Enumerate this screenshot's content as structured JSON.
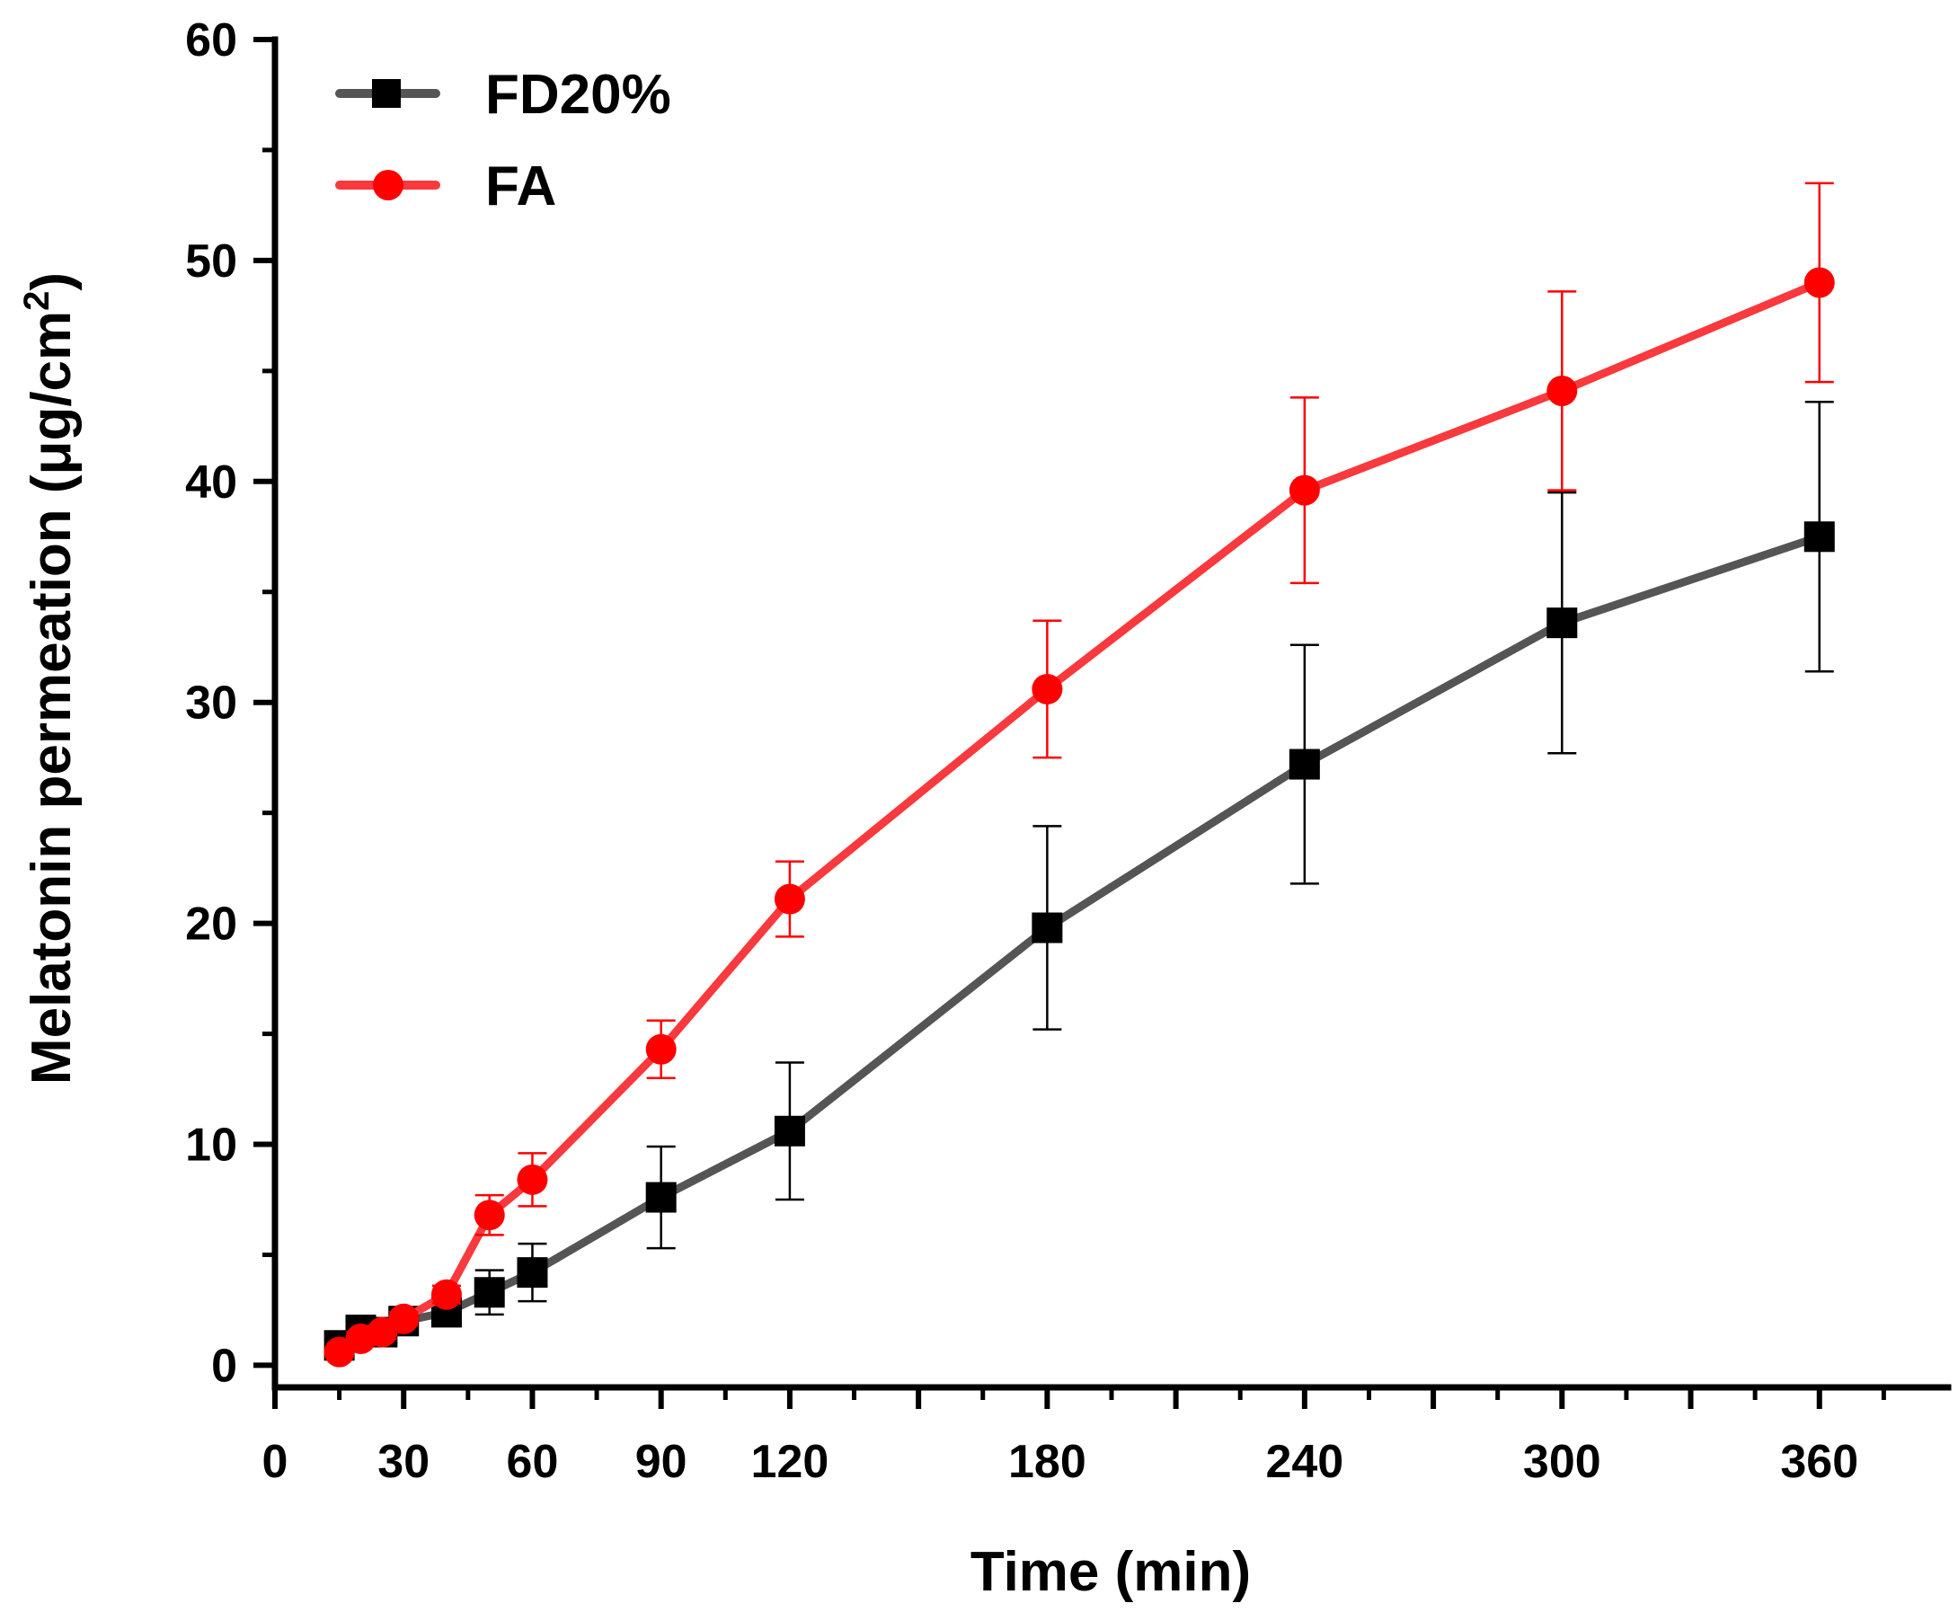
{
  "chart_data": {
    "type": "line",
    "title": "",
    "xlabel": "Time (min)",
    "ylabel": "Melatonin permeation (μg/cm",
    "ylabel_superscript": "2",
    "ylabel_close": ")",
    "xlim": [
      0,
      390
    ],
    "ylim": [
      -1,
      60
    ],
    "xticks": [
      0,
      30,
      60,
      90,
      120,
      180,
      240,
      300,
      360
    ],
    "xticks_unlabeled": [
      150,
      210,
      270,
      330
    ],
    "yticks": [
      0,
      10,
      20,
      30,
      40,
      50,
      60
    ],
    "legend_position": "top-left",
    "series": [
      {
        "name": "FD20%",
        "color": "#555555",
        "marker_color": "#000000",
        "marker": "square",
        "x": [
          15,
          20,
          25,
          30,
          40,
          50,
          60,
          90,
          120,
          180,
          240,
          300,
          360
        ],
        "y": [
          0.9,
          1.6,
          1.5,
          2.0,
          2.4,
          3.3,
          4.2,
          7.6,
          10.6,
          19.8,
          27.2,
          33.6,
          37.5
        ],
        "err": [
          0.3,
          0.3,
          0.3,
          0.3,
          0.4,
          1.0,
          1.3,
          2.3,
          3.1,
          4.6,
          5.4,
          5.9,
          6.1
        ]
      },
      {
        "name": "FA",
        "color": "#f8393d",
        "marker_color": "#ff0000",
        "marker": "circle",
        "x": [
          15,
          20,
          25,
          30,
          40,
          50,
          60,
          90,
          120,
          180,
          240,
          300,
          360
        ],
        "y": [
          0.6,
          1.2,
          1.5,
          2.1,
          3.2,
          6.8,
          8.4,
          14.3,
          21.1,
          30.6,
          39.6,
          44.1,
          49.0
        ],
        "err": [
          0.2,
          0.3,
          0.3,
          0.3,
          0.4,
          0.9,
          1.2,
          1.3,
          1.7,
          3.1,
          4.2,
          4.5,
          4.5
        ]
      }
    ]
  }
}
